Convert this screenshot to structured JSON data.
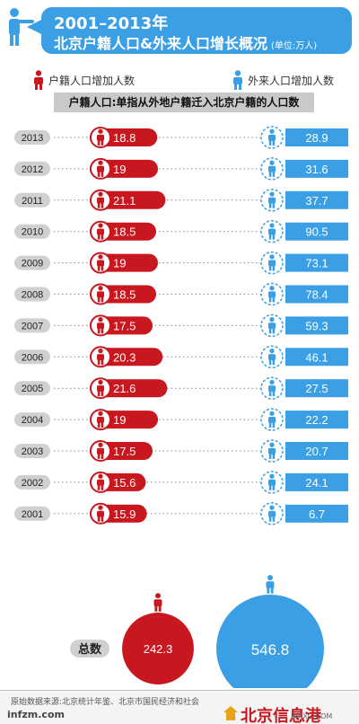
{
  "header": {
    "title_line1": "2001–2013年",
    "title_line2": "北京户籍人口&外来人口增长概况",
    "unit": "(单位:万人)"
  },
  "legend": {
    "huji_label": "户籍人口增加人数",
    "wailai_label": "外来人口增加人数"
  },
  "note": "户籍人口:单指从外地户籍迁入北京户籍的人口数",
  "colors": {
    "red": "#c8171e",
    "blue": "#3a9fe4",
    "year_pill": "#d0d0d0"
  },
  "chart_data": {
    "type": "bar",
    "categories": [
      "2013",
      "2012",
      "2011",
      "2010",
      "2009",
      "2008",
      "2007",
      "2006",
      "2005",
      "2004",
      "2003",
      "2002",
      "2001"
    ],
    "series": [
      {
        "name": "户籍人口增加人数",
        "values": [
          18.8,
          19,
          21.1,
          18.5,
          19,
          18.5,
          17.5,
          20.3,
          21.6,
          19,
          17.5,
          15.6,
          15.9
        ]
      },
      {
        "name": "外来人口增加人数",
        "values": [
          28.9,
          31.6,
          37.7,
          90.5,
          73.1,
          78.4,
          59.3,
          46.1,
          27.5,
          22.2,
          20.7,
          24.1,
          6.7
        ]
      }
    ],
    "labels": [
      "18.8",
      "19",
      "21.1",
      "18.5",
      "19",
      "18.5",
      "17.5",
      "20.3",
      "21.6",
      "19",
      "17.5",
      "15.6",
      "15.9"
    ],
    "labels_blue": [
      "28.9",
      "31.6",
      "37.7",
      "90.5",
      "73.1",
      "78.4",
      "59.3",
      "46.1",
      "27.5",
      "22.2",
      "20.7",
      "24.1",
      "6.7"
    ],
    "totals": {
      "label": "总数",
      "huji": 242.3,
      "huji_text": "242.3",
      "wailai": 546.8,
      "wailai_text": "546.8"
    }
  },
  "footer": {
    "source": "原始数据来源:北京统计年鉴、北京市国民经济和社会",
    "site": "infzm.com",
    "brand": "北京信息港",
    "brand_sub": "BJXXG.COM"
  }
}
